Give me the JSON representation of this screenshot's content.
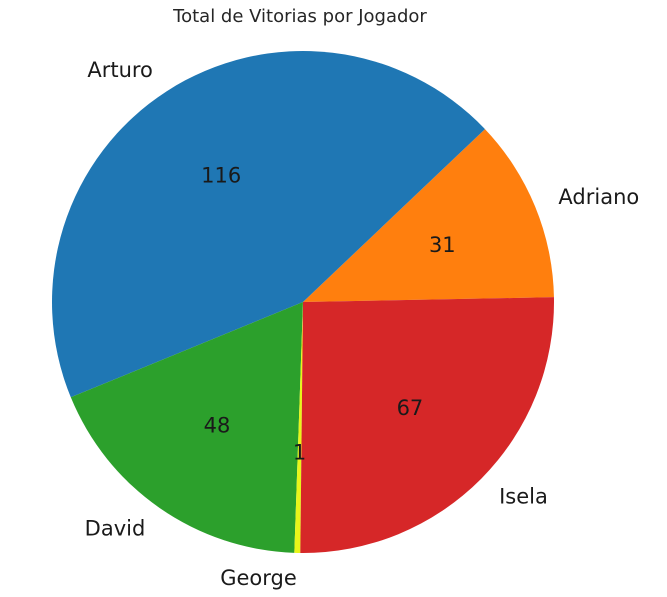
{
  "chart_data": {
    "type": "pie",
    "title": "Total de Vitorias por Jogador",
    "slices": [
      {
        "label": "Adriano",
        "value": 31,
        "color": "#ff7f0e"
      },
      {
        "label": "Arturo",
        "value": 116,
        "color": "#1f77b4"
      },
      {
        "label": "David",
        "value": 48,
        "color": "#2ca02c"
      },
      {
        "label": "George",
        "value": 1,
        "color": "#e8f51a"
      },
      {
        "label": "Isela",
        "value": 67,
        "color": "#d62728"
      }
    ],
    "value_labels": "counts",
    "legend": false
  }
}
